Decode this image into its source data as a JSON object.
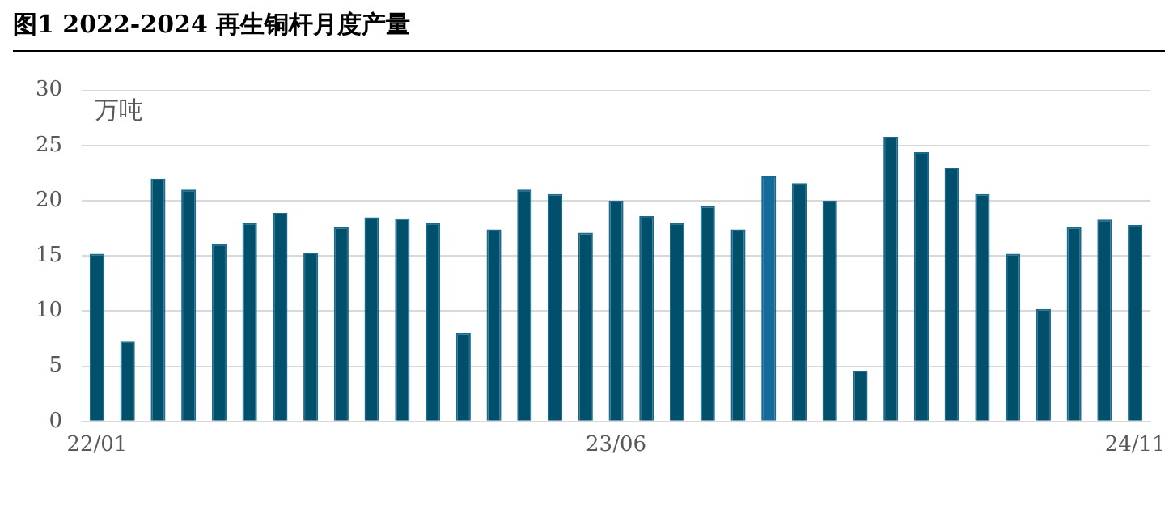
{
  "chart_data": {
    "type": "bar",
    "title": "图1 2022-2024 再生铜杆月度产量",
    "ylabel": "万吨",
    "categories": [
      "22/01",
      null,
      null,
      null,
      null,
      null,
      null,
      null,
      null,
      null,
      null,
      null,
      null,
      null,
      null,
      null,
      null,
      "23/06",
      null,
      null,
      null,
      null,
      null,
      null,
      null,
      null,
      null,
      null,
      null,
      null,
      null,
      null,
      null,
      null,
      "24/11"
    ],
    "values": [
      15.2,
      7.3,
      22,
      21,
      16.1,
      18,
      18.9,
      15.3,
      17.6,
      18.5,
      18.4,
      18,
      8,
      17.4,
      21,
      20.6,
      17.1,
      20,
      18.6,
      18,
      19.5,
      17.4,
      22.2,
      21.6,
      20,
      4.6,
      25.8,
      24.4,
      23,
      20.6,
      15.2,
      10.2,
      17.6,
      18.3,
      17.8
    ],
    "colors": [
      "#004f6b",
      "#004f6b",
      "#004f6b",
      "#004f6b",
      "#004f6b",
      "#004f6b",
      "#004f6b",
      "#004f6b",
      "#004f6b",
      "#004f6b",
      "#004f6b",
      "#004f6b",
      "#004f6b",
      "#004f6b",
      "#004f6b",
      "#004f6b",
      "#004f6b",
      "#004f6b",
      "#004f6b",
      "#004f6b",
      "#004f6b",
      "#004f6b",
      "#146a98",
      "#004f6b",
      "#004f6b",
      "#004f6b",
      "#004f6b",
      "#004f6b",
      "#004f6b",
      "#004f6b",
      "#004f6b",
      "#004f6b",
      "#004f6b",
      "#004f6b",
      "#004f6b"
    ],
    "ylim": [
      0,
      30
    ],
    "yticks": [
      0,
      5,
      10,
      15,
      20,
      25,
      30
    ],
    "grid": "y",
    "legend": false
  }
}
